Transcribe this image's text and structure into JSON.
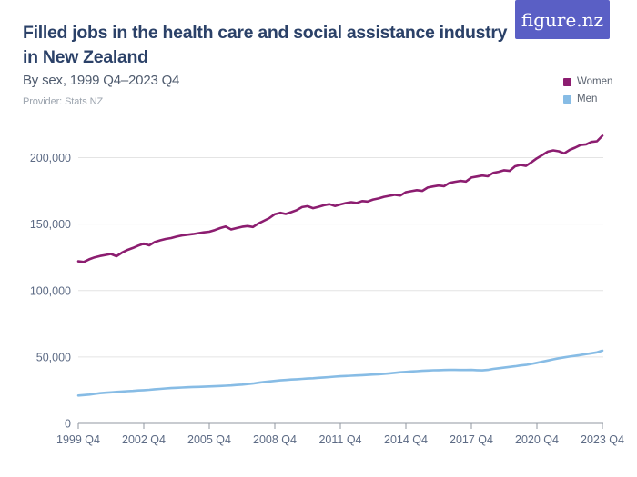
{
  "header": {
    "title_line1": "Filled jobs in the health care and social assistance industry",
    "title_line2": "in New Zealand",
    "subtitle": "By sex, 1999 Q4–2023 Q4",
    "provider": "Provider: Stats NZ"
  },
  "logo": {
    "text": "figure.nz",
    "background": "#5a5fc5"
  },
  "colors": {
    "title": "#2b4168",
    "subtitle": "#4f5b6e",
    "provider": "#9da5af",
    "gridline": "#e4e4e4",
    "axis_line": "#9097a1",
    "tick_label": "#5d6b85",
    "background": "#ffffff"
  },
  "chart_data": {
    "type": "line",
    "title": "Filled jobs in the health care and social assistance industry in New Zealand",
    "subtitle": "By sex, 1999 Q4–2023 Q4",
    "frequency": "quarterly",
    "x_start": "1999 Q4",
    "x_end": "2023 Q4",
    "n_points": 97,
    "grid": "horizontal-only",
    "legend_position": "top-right",
    "ylim": [
      0,
      220000
    ],
    "y_ticks": {
      "labels": [
        "0",
        "50,000",
        "100,000",
        "150,000",
        "200,000"
      ],
      "values": [
        0,
        50000,
        100000,
        150000,
        200000
      ]
    },
    "x_ticks": {
      "labels": [
        "1999 Q4",
        "2002 Q4",
        "2005 Q4",
        "2008 Q4",
        "2011 Q4",
        "2014 Q4",
        "2017 Q4",
        "2020 Q4",
        "2023 Q4"
      ],
      "indices": [
        0,
        12,
        24,
        36,
        48,
        60,
        72,
        84,
        96
      ]
    },
    "series": [
      {
        "key": "women",
        "name": "Women",
        "color": "#8c1d70",
        "values": [
          122000,
          121500,
          123500,
          125000,
          126000,
          126800,
          127500,
          125800,
          128500,
          130500,
          132000,
          133800,
          135300,
          134000,
          136500,
          137800,
          138800,
          139500,
          140600,
          141500,
          142000,
          142500,
          143200,
          143800,
          144300,
          145500,
          147000,
          148200,
          146000,
          147000,
          148000,
          148500,
          147800,
          150500,
          152500,
          154500,
          157500,
          158500,
          157600,
          159000,
          160500,
          162800,
          163500,
          162000,
          163000,
          164200,
          165000,
          163600,
          164800,
          165800,
          166500,
          165900,
          167300,
          167000,
          168500,
          169300,
          170500,
          171300,
          172000,
          171500,
          174000,
          174800,
          175500,
          175000,
          177500,
          178300,
          179000,
          178500,
          181000,
          181800,
          182500,
          182000,
          185000,
          185800,
          186500,
          186000,
          188500,
          189300,
          190500,
          190000,
          193500,
          194500,
          193800,
          196500,
          199500,
          202000,
          204500,
          205500,
          204800,
          203200,
          205800,
          207500,
          209500,
          210000,
          211800,
          212300,
          216500
        ]
      },
      {
        "key": "men",
        "name": "Men",
        "color": "#87bce5",
        "values": [
          21000,
          21300,
          21700,
          22200,
          22800,
          23100,
          23400,
          23700,
          24000,
          24300,
          24500,
          24800,
          25000,
          25300,
          25700,
          26000,
          26300,
          26600,
          26800,
          27000,
          27200,
          27400,
          27500,
          27600,
          27800,
          28000,
          28200,
          28400,
          28600,
          28900,
          29200,
          29600,
          30000,
          30600,
          31200,
          31600,
          32000,
          32400,
          32700,
          33000,
          33200,
          33500,
          33800,
          34000,
          34300,
          34600,
          34900,
          35200,
          35500,
          35700,
          35900,
          36100,
          36300,
          36500,
          36800,
          37000,
          37300,
          37700,
          38100,
          38500,
          38800,
          39100,
          39300,
          39600,
          39800,
          40000,
          40100,
          40200,
          40300,
          40300,
          40200,
          40200,
          40300,
          40100,
          39900,
          40300,
          41000,
          41500,
          42000,
          42500,
          43000,
          43600,
          44000,
          44800,
          45600,
          46500,
          47300,
          48200,
          49000,
          49700,
          50300,
          50900,
          51500,
          52200,
          52800,
          53500,
          54800
        ]
      }
    ]
  }
}
